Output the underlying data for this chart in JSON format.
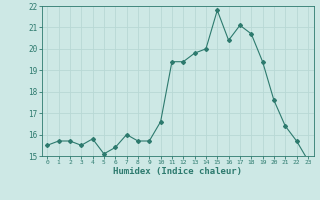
{
  "x": [
    0,
    1,
    2,
    3,
    4,
    5,
    6,
    7,
    8,
    9,
    10,
    11,
    12,
    13,
    14,
    15,
    16,
    17,
    18,
    19,
    20,
    21,
    22,
    23
  ],
  "y": [
    15.5,
    15.7,
    15.7,
    15.5,
    15.8,
    15.1,
    15.4,
    16.0,
    15.7,
    15.7,
    16.6,
    19.4,
    19.4,
    19.8,
    20.0,
    21.8,
    20.4,
    21.1,
    20.7,
    19.4,
    17.6,
    16.4,
    15.7,
    14.8
  ],
  "xlabel": "Humidex (Indice chaleur)",
  "ylim": [
    15,
    22
  ],
  "xlim": [
    -0.5,
    23.5
  ],
  "yticks": [
    15,
    16,
    17,
    18,
    19,
    20,
    21,
    22
  ],
  "xticks": [
    0,
    1,
    2,
    3,
    4,
    5,
    6,
    7,
    8,
    9,
    10,
    11,
    12,
    13,
    14,
    15,
    16,
    17,
    18,
    19,
    20,
    21,
    22,
    23
  ],
  "line_color": "#2d7a6e",
  "bg_color": "#cde8e5",
  "grid_color": "#b8d8d5",
  "axis_color": "#2d7a6e",
  "tick_label_color": "#2d7a6e",
  "xlabel_color": "#2d7a6e"
}
